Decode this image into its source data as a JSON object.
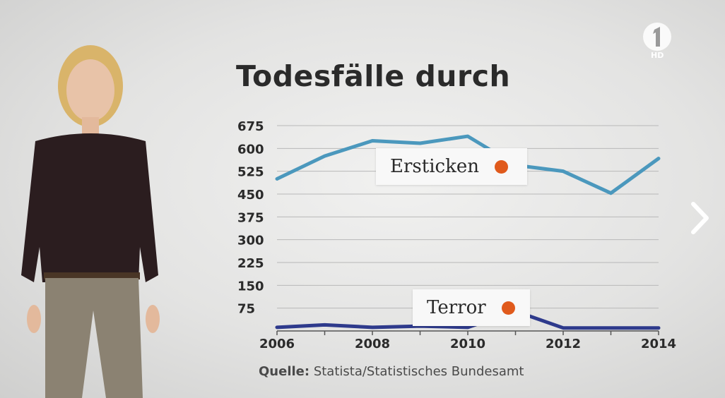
{
  "header": {
    "title": "Todesfälle durch"
  },
  "source": {
    "label": "Quelle:",
    "text": "Statista/Statistisches Bundesamt"
  },
  "logo": {
    "hd_text": "HD"
  },
  "colors": {
    "ersticken": "#4b98bd",
    "terror": "#2e3a8c",
    "marker": "#e05a1c",
    "grid": "#b8b8b8",
    "text": "#2a2a2a"
  },
  "icons": {
    "next": "chevron-right-icon",
    "logo": "das-erste-logo-icon"
  },
  "chart_data": {
    "type": "line",
    "title": "Todesfälle durch",
    "x": [
      2006,
      2007,
      2008,
      2009,
      2010,
      2011,
      2012,
      2013,
      2014
    ],
    "x_tick_labels": [
      "2006",
      "2008",
      "2010",
      "2012",
      "2014"
    ],
    "y_tick_labels": [
      "75",
      "150",
      "225",
      "300",
      "375",
      "450",
      "525",
      "600",
      "675"
    ],
    "ylim": [
      0,
      675
    ],
    "grid": true,
    "series": [
      {
        "name": "Ersticken",
        "values": [
          500,
          575,
          625,
          617,
          640,
          545,
          525,
          453,
          567
        ]
      },
      {
        "name": "Terror",
        "values": [
          12,
          20,
          12,
          16,
          12,
          65,
          10,
          10,
          10
        ]
      }
    ]
  }
}
